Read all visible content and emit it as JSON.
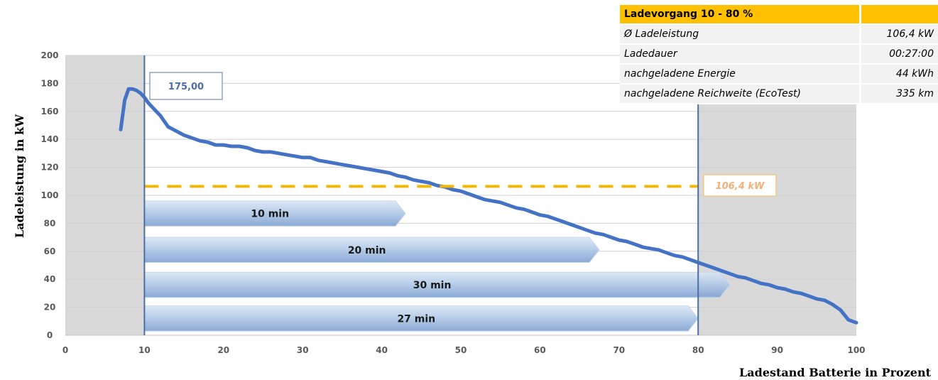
{
  "chart_data": {
    "type": "line",
    "xlabel": "Ladestand Batterie in Prozent",
    "ylabel": "Ladeleistung in kW",
    "xlim": [
      0,
      100
    ],
    "ylim": [
      0,
      200
    ],
    "x_ticks": [
      "0",
      "10",
      "20",
      "30",
      "40",
      "50",
      "60",
      "70",
      "80",
      "90",
      "100"
    ],
    "y_ticks": [
      "0",
      "20",
      "40",
      "60",
      "80",
      "100",
      "120",
      "140",
      "160",
      "180",
      "200"
    ],
    "grid": "horizontal",
    "series": [
      {
        "color": "#4472c4",
        "points": [
          [
            7,
            147
          ],
          [
            7.5,
            168
          ],
          [
            8,
            176
          ],
          [
            8.5,
            176
          ],
          [
            9,
            175
          ],
          [
            9.5,
            173
          ],
          [
            10,
            170
          ],
          [
            10.5,
            166
          ],
          [
            11,
            163
          ],
          [
            12,
            157
          ],
          [
            13,
            149
          ],
          [
            14,
            146
          ],
          [
            15,
            143
          ],
          [
            16,
            141
          ],
          [
            17,
            139
          ],
          [
            18,
            138
          ],
          [
            19,
            136
          ],
          [
            20,
            136
          ],
          [
            21,
            135
          ],
          [
            22,
            135
          ],
          [
            23,
            134
          ],
          [
            24,
            132
          ],
          [
            25,
            131
          ],
          [
            26,
            131
          ],
          [
            27,
            130
          ],
          [
            28,
            129
          ],
          [
            29,
            128
          ],
          [
            30,
            127
          ],
          [
            31,
            127
          ],
          [
            32,
            125
          ],
          [
            33,
            124
          ],
          [
            34,
            123
          ],
          [
            35,
            122
          ],
          [
            36,
            121
          ],
          [
            37,
            120
          ],
          [
            38,
            119
          ],
          [
            39,
            118
          ],
          [
            40,
            117
          ],
          [
            41,
            116
          ],
          [
            42,
            114
          ],
          [
            43,
            113
          ],
          [
            44,
            111
          ],
          [
            45,
            110
          ],
          [
            46,
            109
          ],
          [
            47,
            107
          ],
          [
            48,
            106
          ],
          [
            49,
            104
          ],
          [
            50,
            103
          ],
          [
            51,
            101
          ],
          [
            52,
            99
          ],
          [
            53,
            97
          ],
          [
            54,
            96
          ],
          [
            55,
            95
          ],
          [
            56,
            93
          ],
          [
            57,
            91
          ],
          [
            58,
            90
          ],
          [
            59,
            88
          ],
          [
            60,
            86
          ],
          [
            61,
            85
          ],
          [
            62,
            83
          ],
          [
            63,
            81
          ],
          [
            64,
            79
          ],
          [
            65,
            77
          ],
          [
            66,
            75
          ],
          [
            67,
            73
          ],
          [
            68,
            72
          ],
          [
            69,
            70
          ],
          [
            70,
            68
          ],
          [
            71,
            67
          ],
          [
            72,
            65
          ],
          [
            73,
            63
          ],
          [
            74,
            62
          ],
          [
            75,
            61
          ],
          [
            76,
            59
          ],
          [
            77,
            57
          ],
          [
            78,
            56
          ],
          [
            79,
            54
          ],
          [
            80,
            52
          ],
          [
            81,
            50
          ],
          [
            82,
            48
          ],
          [
            83,
            46
          ],
          [
            84,
            44
          ],
          [
            85,
            42
          ],
          [
            86,
            41
          ],
          [
            87,
            39
          ],
          [
            88,
            37
          ],
          [
            89,
            36
          ],
          [
            90,
            34
          ],
          [
            91,
            33
          ],
          [
            92,
            31
          ],
          [
            93,
            30
          ],
          [
            94,
            28
          ],
          [
            95,
            26
          ],
          [
            96,
            25
          ],
          [
            97,
            22
          ],
          [
            98,
            18
          ],
          [
            99,
            11
          ],
          [
            100,
            9
          ]
        ]
      }
    ],
    "shaded_ranges": [
      [
        0,
        10
      ],
      [
        80,
        100
      ]
    ],
    "vertical_markers": [
      10,
      80
    ],
    "average_line": {
      "y": 106.4,
      "x_start": 10,
      "x_end": 80,
      "color": "#f2b705",
      "label": "106,4 kW"
    },
    "peak_callout": {
      "label": "175,00"
    },
    "time_bars": [
      {
        "label": "10 min",
        "x_start": 10,
        "x_end": 43,
        "y_low": 78,
        "y_high": 96
      },
      {
        "label": "20 min",
        "x_start": 10,
        "x_end": 67.5,
        "y_low": 52,
        "y_high": 70
      },
      {
        "label": "30 min",
        "x_start": 10,
        "x_end": 84,
        "y_low": 27,
        "y_high": 45
      },
      {
        "label": "27 min",
        "x_start": 10,
        "x_end": 80,
        "y_low": 3,
        "y_high": 21
      }
    ]
  },
  "summary": {
    "title": "Ladevorgang 10 - 80 %",
    "rows": [
      {
        "label": "Ø Ladeleistung",
        "value": "106,4 kW"
      },
      {
        "label": "Ladedauer",
        "value": "00:27:00"
      },
      {
        "label": "nachgeladene Energie",
        "value": "44 kWh"
      },
      {
        "label": "nachgeladene Reichweite (EcoTest)",
        "value": "335 km"
      }
    ]
  }
}
